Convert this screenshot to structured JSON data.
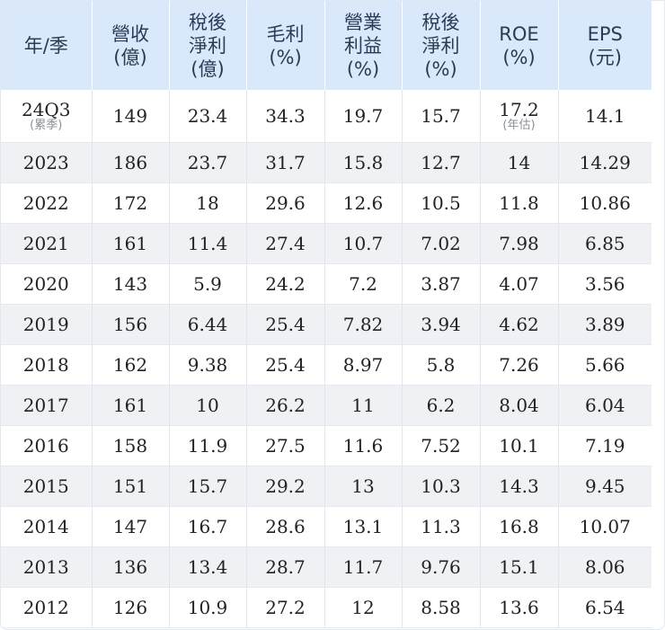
{
  "headers": [
    [
      "年/季"
    ],
    [
      "營收",
      "(億)"
    ],
    [
      "稅後",
      "淨利",
      "(億)"
    ],
    [
      "毛利",
      "(%)"
    ],
    [
      "營業",
      "利益",
      "(%)"
    ],
    [
      "稅後",
      "淨利",
      "(%)"
    ],
    [
      "ROE",
      "(%)"
    ],
    [
      "EPS",
      "(元)"
    ]
  ],
  "first_row": {
    "period": "24Q3",
    "period_note": "(累季)",
    "revenue": "149",
    "net_income": "23.4",
    "gross_margin": "34.3",
    "operating_margin": "19.7",
    "net_margin": "15.7",
    "roe": "17.2",
    "roe_note": "(年估)",
    "eps": "14.1"
  },
  "rows": [
    [
      "2023",
      "186",
      "23.7",
      "31.7",
      "15.8",
      "12.7",
      "14",
      "14.29"
    ],
    [
      "2022",
      "172",
      "18",
      "29.6",
      "12.6",
      "10.5",
      "11.8",
      "10.86"
    ],
    [
      "2021",
      "161",
      "11.4",
      "27.4",
      "10.7",
      "7.02",
      "7.98",
      "6.85"
    ],
    [
      "2020",
      "143",
      "5.9",
      "24.2",
      "7.2",
      "3.87",
      "4.07",
      "3.56"
    ],
    [
      "2019",
      "156",
      "6.44",
      "25.4",
      "7.82",
      "3.94",
      "4.62",
      "3.89"
    ],
    [
      "2018",
      "162",
      "9.38",
      "25.4",
      "8.97",
      "5.8",
      "7.26",
      "5.66"
    ],
    [
      "2017",
      "161",
      "10",
      "26.2",
      "11",
      "6.2",
      "8.04",
      "6.04"
    ],
    [
      "2016",
      "158",
      "11.9",
      "27.5",
      "11.6",
      "7.52",
      "10.1",
      "7.19"
    ],
    [
      "2015",
      "151",
      "15.7",
      "29.2",
      "13",
      "10.3",
      "14.3",
      "9.45"
    ],
    [
      "2014",
      "147",
      "16.7",
      "28.6",
      "13.1",
      "11.3",
      "16.8",
      "10.07"
    ],
    [
      "2013",
      "136",
      "13.4",
      "28.7",
      "11.7",
      "9.76",
      "15.1",
      "8.06"
    ],
    [
      "2012",
      "126",
      "10.9",
      "27.2",
      "12",
      "8.58",
      "13.6",
      "6.54"
    ]
  ]
}
